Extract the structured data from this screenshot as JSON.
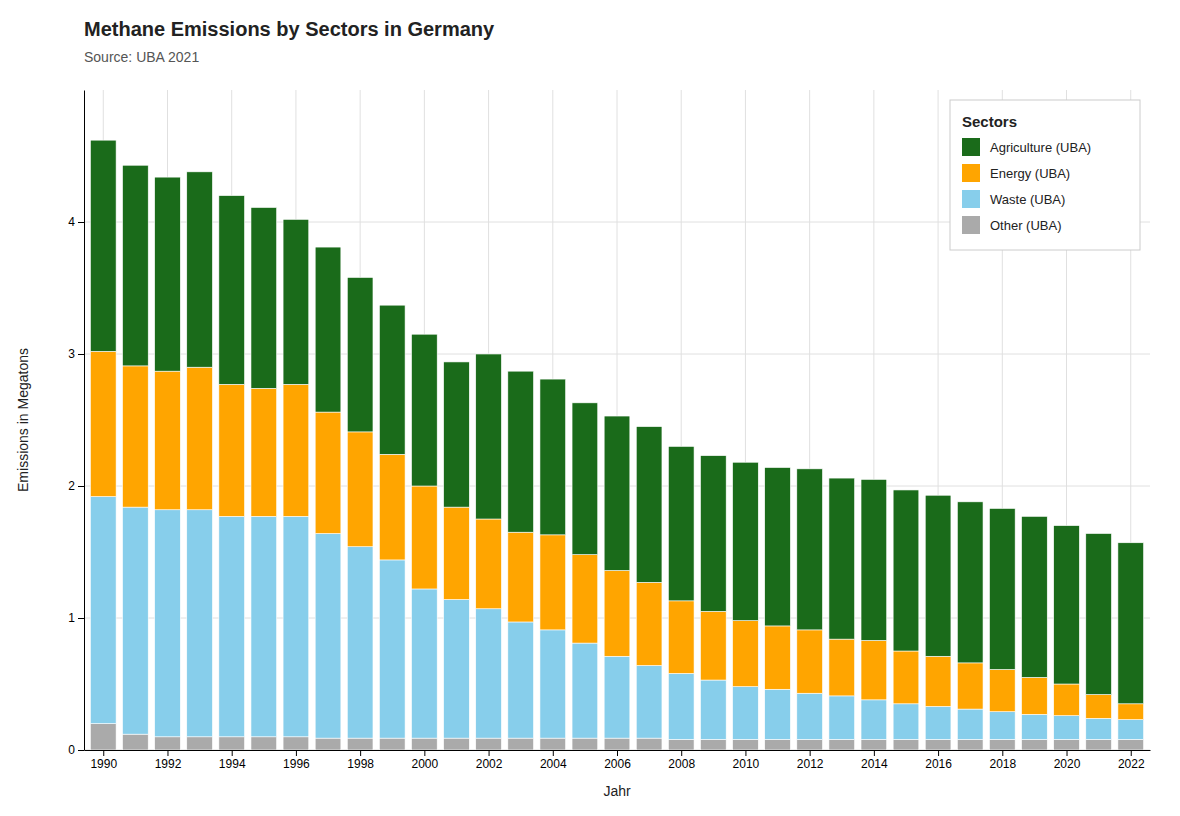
{
  "chart_data": {
    "type": "bar",
    "title": "Methane Emissions by Sectors in Germany",
    "subtitle": "Source: UBA 2021",
    "xlabel": "Jahr",
    "ylabel": "Emissions in Megatons",
    "legend_title": "Sectors",
    "stacked": true,
    "grid": true,
    "legend": "top-right",
    "x": [
      1990,
      1991,
      1992,
      1993,
      1994,
      1995,
      1996,
      1997,
      1998,
      1999,
      2000,
      2001,
      2002,
      2003,
      2004,
      2005,
      2006,
      2007,
      2008,
      2009,
      2010,
      2011,
      2012,
      2013,
      2014,
      2015,
      2016,
      2017,
      2018,
      2019,
      2020,
      2021,
      2022
    ],
    "xlim": [
      1989.4,
      2022.6
    ],
    "xticks": [
      1990,
      1992,
      1994,
      1996,
      1998,
      2000,
      2002,
      2004,
      2006,
      2008,
      2010,
      2012,
      2014,
      2016,
      2018,
      2020,
      2022
    ],
    "ylim": [
      0,
      5
    ],
    "yticks": [
      0,
      1,
      2,
      3,
      4
    ],
    "series": [
      {
        "name": "Other (UBA)",
        "color": "#aaaaaa",
        "values": [
          0.2,
          0.12,
          0.1,
          0.1,
          0.1,
          0.1,
          0.1,
          0.09,
          0.09,
          0.09,
          0.09,
          0.09,
          0.09,
          0.09,
          0.09,
          0.09,
          0.09,
          0.09,
          0.08,
          0.08,
          0.08,
          0.08,
          0.08,
          0.08,
          0.08,
          0.08,
          0.08,
          0.08,
          0.08,
          0.08,
          0.08,
          0.08,
          0.08
        ]
      },
      {
        "name": "Waste (UBA)",
        "color": "#87ceeb",
        "values": [
          1.72,
          1.72,
          1.72,
          1.72,
          1.67,
          1.67,
          1.67,
          1.55,
          1.45,
          1.35,
          1.13,
          1.05,
          0.98,
          0.88,
          0.82,
          0.72,
          0.62,
          0.55,
          0.5,
          0.45,
          0.4,
          0.38,
          0.35,
          0.33,
          0.3,
          0.27,
          0.25,
          0.23,
          0.21,
          0.19,
          0.18,
          0.16,
          0.15
        ]
      },
      {
        "name": "Energy (UBA)",
        "color": "#ffa500",
        "values": [
          1.1,
          1.07,
          1.05,
          1.08,
          1.0,
          0.97,
          1.0,
          0.92,
          0.87,
          0.8,
          0.78,
          0.7,
          0.68,
          0.68,
          0.72,
          0.67,
          0.65,
          0.63,
          0.55,
          0.52,
          0.5,
          0.48,
          0.48,
          0.43,
          0.45,
          0.4,
          0.38,
          0.35,
          0.32,
          0.28,
          0.24,
          0.18,
          0.12
        ]
      },
      {
        "name": "Agriculture (UBA)",
        "color": "#1a6b1a",
        "values": [
          1.6,
          1.52,
          1.47,
          1.48,
          1.43,
          1.37,
          1.25,
          1.25,
          1.17,
          1.13,
          1.15,
          1.1,
          1.25,
          1.22,
          1.18,
          1.15,
          1.17,
          1.18,
          1.17,
          1.18,
          1.2,
          1.2,
          1.22,
          1.22,
          1.22,
          1.22,
          1.22,
          1.22,
          1.22,
          1.22,
          1.2,
          1.22,
          1.22
        ]
      }
    ]
  }
}
